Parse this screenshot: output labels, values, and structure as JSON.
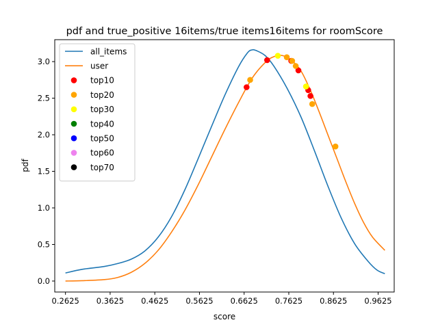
{
  "chart_data": {
    "type": "line",
    "title": "pdf and true_positive 16items/true items16items for roomScore",
    "xlabel": "score",
    "ylabel": "pdf",
    "xlim": [
      0.2385,
      0.9985
    ],
    "ylim": [
      -0.15,
      3.3
    ],
    "xticks": [
      {
        "value": 0.2625,
        "label": "0.2625"
      },
      {
        "value": 0.3625,
        "label": "0.3625"
      },
      {
        "value": 0.4625,
        "label": "0.4625"
      },
      {
        "value": 0.5625,
        "label": "0.5625"
      },
      {
        "value": 0.6625,
        "label": "0.6625"
      },
      {
        "value": 0.7625,
        "label": "0.7625"
      },
      {
        "value": 0.8625,
        "label": "0.8625"
      },
      {
        "value": 0.9625,
        "label": "0.9625"
      }
    ],
    "yticks": [
      {
        "value": 0.0,
        "label": "0.0"
      },
      {
        "value": 0.5,
        "label": "0.5"
      },
      {
        "value": 1.0,
        "label": "1.0"
      },
      {
        "value": 1.5,
        "label": "1.5"
      },
      {
        "value": 2.0,
        "label": "2.0"
      },
      {
        "value": 2.5,
        "label": "2.5"
      },
      {
        "value": 3.0,
        "label": "3.0"
      }
    ],
    "grid": false,
    "legend_position": "top-left",
    "lines": [
      {
        "name": "all_items",
        "color": "#1f77b4",
        "points": [
          [
            0.2625,
            0.11
          ],
          [
            0.3,
            0.16
          ],
          [
            0.35,
            0.2
          ],
          [
            0.38,
            0.24
          ],
          [
            0.41,
            0.3
          ],
          [
            0.44,
            0.41
          ],
          [
            0.47,
            0.6
          ],
          [
            0.5,
            0.88
          ],
          [
            0.53,
            1.25
          ],
          [
            0.56,
            1.68
          ],
          [
            0.59,
            2.12
          ],
          [
            0.62,
            2.55
          ],
          [
            0.65,
            2.93
          ],
          [
            0.67,
            3.12
          ],
          [
            0.68,
            3.16
          ],
          [
            0.69,
            3.15
          ],
          [
            0.71,
            3.08
          ],
          [
            0.73,
            2.93
          ],
          [
            0.76,
            2.62
          ],
          [
            0.79,
            2.24
          ],
          [
            0.82,
            1.78
          ],
          [
            0.85,
            1.3
          ],
          [
            0.88,
            0.86
          ],
          [
            0.91,
            0.51
          ],
          [
            0.94,
            0.27
          ],
          [
            0.96,
            0.15
          ],
          [
            0.9775,
            0.1
          ]
        ]
      },
      {
        "name": "user",
        "color": "#ff7f0e",
        "points": [
          [
            0.2625,
            0.0
          ],
          [
            0.3,
            0.005
          ],
          [
            0.35,
            0.02
          ],
          [
            0.38,
            0.05
          ],
          [
            0.41,
            0.12
          ],
          [
            0.44,
            0.24
          ],
          [
            0.47,
            0.42
          ],
          [
            0.5,
            0.67
          ],
          [
            0.53,
            0.97
          ],
          [
            0.56,
            1.32
          ],
          [
            0.59,
            1.7
          ],
          [
            0.62,
            2.08
          ],
          [
            0.65,
            2.44
          ],
          [
            0.68,
            2.77
          ],
          [
            0.71,
            2.99
          ],
          [
            0.73,
            3.07
          ],
          [
            0.75,
            3.08
          ],
          [
            0.77,
            3.01
          ],
          [
            0.79,
            2.87
          ],
          [
            0.81,
            2.62
          ],
          [
            0.83,
            2.32
          ],
          [
            0.85,
            2.0
          ],
          [
            0.87,
            1.68
          ],
          [
            0.89,
            1.36
          ],
          [
            0.91,
            1.06
          ],
          [
            0.93,
            0.8
          ],
          [
            0.95,
            0.6
          ],
          [
            0.9775,
            0.42
          ]
        ]
      }
    ],
    "scatter": [
      {
        "name": "top10",
        "color": "#ff0000",
        "points": [
          [
            0.668,
            2.65
          ],
          [
            0.714,
            3.02
          ],
          [
            0.768,
            3.01
          ],
          [
            0.784,
            2.88
          ],
          [
            0.806,
            2.61
          ],
          [
            0.811,
            2.53
          ]
        ]
      },
      {
        "name": "top20",
        "color": "#ffa500",
        "points": [
          [
            0.676,
            2.75
          ],
          [
            0.758,
            3.06
          ],
          [
            0.77,
            3.01
          ],
          [
            0.778,
            2.94
          ],
          [
            0.815,
            2.42
          ],
          [
            0.867,
            1.84
          ]
        ]
      },
      {
        "name": "top30",
        "color": "#ffff00",
        "points": [
          [
            0.738,
            3.08
          ],
          [
            0.801,
            2.66
          ]
        ]
      },
      {
        "name": "top40",
        "color": "#008000",
        "points": []
      },
      {
        "name": "top50",
        "color": "#0000ff",
        "points": []
      },
      {
        "name": "top60",
        "color": "#ee82ee",
        "points": []
      },
      {
        "name": "top70",
        "color": "#000000",
        "points": []
      }
    ]
  }
}
